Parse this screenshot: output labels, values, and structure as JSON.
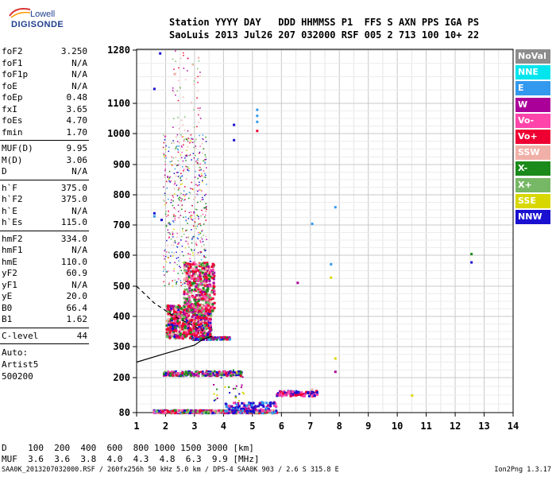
{
  "logo": {
    "line1": "Lowell",
    "line2": "DIGISONDE"
  },
  "header": {
    "row1": "Station YYYY DAY   DDD HHMMSS P1  FFS S AXN PPS IGA PS",
    "row2": "SaoLuis 2013 Jul26 207 032000 RSF 005 2 713 100 10+ 22"
  },
  "params": {
    "group1": [
      {
        "name": "foF2",
        "value": "3.250"
      },
      {
        "name": "foF1",
        "value": "N/A"
      },
      {
        "name": "foF1p",
        "value": "N/A"
      },
      {
        "name": "foE",
        "value": "N/A"
      },
      {
        "name": "foEp",
        "value": "0.48"
      },
      {
        "name": "fxI",
        "value": "3.65"
      },
      {
        "name": "foEs",
        "value": "4.70"
      },
      {
        "name": "fmin",
        "value": "1.70"
      }
    ],
    "group2": [
      {
        "name": "MUF(D)",
        "value": "9.95"
      },
      {
        "name": "M(D)",
        "value": "3.06"
      },
      {
        "name": "D",
        "value": "N/A"
      }
    ],
    "group3": [
      {
        "name": "h`F",
        "value": "375.0"
      },
      {
        "name": "h`F2",
        "value": "375.0"
      },
      {
        "name": "h`E",
        "value": "N/A"
      },
      {
        "name": "h`Es",
        "value": "115.0"
      }
    ],
    "group4": [
      {
        "name": "hmF2",
        "value": "334.0"
      },
      {
        "name": "hmF1",
        "value": "N/A"
      },
      {
        "name": "hmE",
        "value": "110.0"
      },
      {
        "name": "yF2",
        "value": "60.9"
      },
      {
        "name": "yF1",
        "value": "N/A"
      },
      {
        "name": "yE",
        "value": "20.0"
      },
      {
        "name": "B0",
        "value": "66.4"
      },
      {
        "name": "B1",
        "value": "1.62"
      }
    ],
    "clevel": {
      "name": "C-level",
      "value": "44"
    },
    "auto": [
      "Auto:",
      "Artist5",
      "500200"
    ]
  },
  "legend": [
    {
      "label": "NoVal",
      "color": "#8c8c8c"
    },
    {
      "label": "NNE",
      "color": "#00e5ee"
    },
    {
      "label": "E",
      "color": "#3399ee"
    },
    {
      "label": "W",
      "color": "#aa0099"
    },
    {
      "label": "Vo-",
      "color": "#ff44aa"
    },
    {
      "label": "Vo+",
      "color": "#ee0033"
    },
    {
      "label": "SSW",
      "color": "#f0b0a8"
    },
    {
      "label": "X-",
      "color": "#1a8a1a"
    },
    {
      "label": "X+",
      "color": "#77b866"
    },
    {
      "label": "SSE",
      "color": "#d8d800"
    },
    {
      "label": "NNW",
      "color": "#1a10d0"
    }
  ],
  "chart_data": {
    "type": "scatter",
    "title": "",
    "xlabel": "",
    "ylabel": "",
    "xlim": [
      1,
      14
    ],
    "xticks": [
      1,
      2,
      3,
      4,
      5,
      6,
      7,
      8,
      9,
      10,
      11,
      12,
      13,
      14
    ],
    "yticks": [
      80,
      200,
      300,
      400,
      500,
      600,
      700,
      800,
      900,
      1000,
      1100,
      1280
    ],
    "y_scale": "non-linear (compressed at low and high ends)",
    "grid": true,
    "legend_position": "right",
    "trace_clusters": [
      {
        "name": "E-layer trace",
        "x_range": [
          1.5,
          5.8
        ],
        "y": 85
      },
      {
        "name": "Es trace",
        "x_range": [
          5.8,
          7.2
        ],
        "y": 150
      },
      {
        "name": "Es trace 2",
        "x_range": [
          1.9,
          4.6
        ],
        "y": 215
      },
      {
        "name": "F trace",
        "x_range": [
          2.0,
          3.6
        ],
        "y_range": [
          330,
          580
        ]
      }
    ],
    "scattered_points": [
      {
        "x": 1.8,
        "y": 1270,
        "series": "NNW"
      },
      {
        "x": 1.6,
        "y": 1150,
        "series": "NNW"
      },
      {
        "x": 2.3,
        "y": 1200,
        "series": "SSW"
      },
      {
        "x": 5.15,
        "y": 1080,
        "series": "E"
      },
      {
        "x": 5.15,
        "y": 1060,
        "series": "E"
      },
      {
        "x": 5.15,
        "y": 1040,
        "series": "E"
      },
      {
        "x": 5.15,
        "y": 1010,
        "series": "Vo+"
      },
      {
        "x": 4.35,
        "y": 1030,
        "series": "NNW"
      },
      {
        "x": 4.35,
        "y": 980,
        "series": "NNW"
      },
      {
        "x": 1.6,
        "y": 740,
        "series": "NNW"
      },
      {
        "x": 1.6,
        "y": 730,
        "series": "E"
      },
      {
        "x": 1.85,
        "y": 718,
        "series": "NNW"
      },
      {
        "x": 7.05,
        "y": 705,
        "series": "E"
      },
      {
        "x": 7.85,
        "y": 760,
        "series": "E"
      },
      {
        "x": 7.7,
        "y": 572,
        "series": "E"
      },
      {
        "x": 12.55,
        "y": 605,
        "series": "X-"
      },
      {
        "x": 12.55,
        "y": 578,
        "series": "NNW"
      },
      {
        "x": 7.7,
        "y": 529,
        "series": "SSE"
      },
      {
        "x": 6.55,
        "y": 512,
        "series": "W"
      },
      {
        "x": 7.85,
        "y": 263,
        "series": "SSE"
      },
      {
        "x": 7.85,
        "y": 220,
        "series": "W"
      },
      {
        "x": 10.5,
        "y": 140,
        "series": "SSE"
      },
      {
        "x": 7.05,
        "y": 160,
        "series": "SSW"
      }
    ],
    "curves": [
      {
        "name": "profile (solid)",
        "points": [
          [
            1.0,
            250
          ],
          [
            2.0,
            278
          ],
          [
            3.0,
            305
          ],
          [
            3.3,
            325
          ],
          [
            3.6,
            334
          ]
        ]
      },
      {
        "name": "profile (dashed)",
        "points": [
          [
            1.0,
            500
          ],
          [
            1.6,
            445
          ],
          [
            2.3,
            400
          ],
          [
            2.9,
            372
          ],
          [
            3.3,
            352
          ]
        ]
      }
    ]
  },
  "footer": {
    "row1": "D    100  200  400  600  800 1000 1500 3000 [km]",
    "row2": "MUF  3.6  3.6  3.8  4.0  4.3  4.8  6.3  9.9 [MHz]",
    "file_line": "SAA0K_2013207032000.RSF / 260fx256h 50 kHz 5.0 km / DPS-4 SAA0K 903 / 2.6 S 315.8 E",
    "version": "Ion2Png 1.3.17"
  }
}
